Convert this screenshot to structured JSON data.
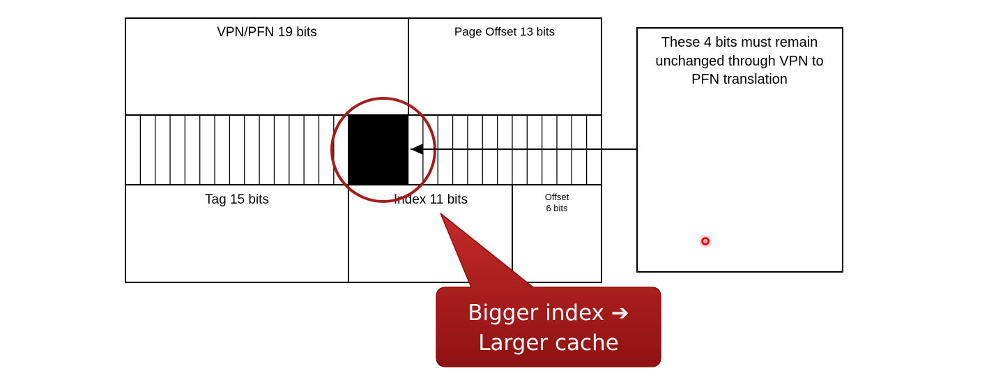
{
  "address": {
    "vpn_label": "VPN/PFN 19 bits",
    "page_offset_label": "Page Offset 13 bits",
    "total_bits": 32,
    "vpn_bits": 19,
    "page_offset_bits": 13
  },
  "cache": {
    "tag_label": "Tag 15 bits",
    "index_label": "Index 11 bits",
    "offset_label_line1": "Offset",
    "offset_label_line2": "6 bits",
    "tag_bits": 15,
    "index_bits": 11,
    "offset_bits": 6
  },
  "highlight": {
    "bit_count": 4
  },
  "note": {
    "line1": "These 4 bits must remain",
    "line2": "unchanged through VPN to",
    "line3": "PFN translation"
  },
  "callout": {
    "line1": "Bigger index ➔",
    "line2": "Larger cache"
  },
  "colors": {
    "circle": "#a51c1c",
    "callout_fill": "#b31b1b",
    "callout_border": "#8c1010",
    "laser": "#ff0000"
  }
}
